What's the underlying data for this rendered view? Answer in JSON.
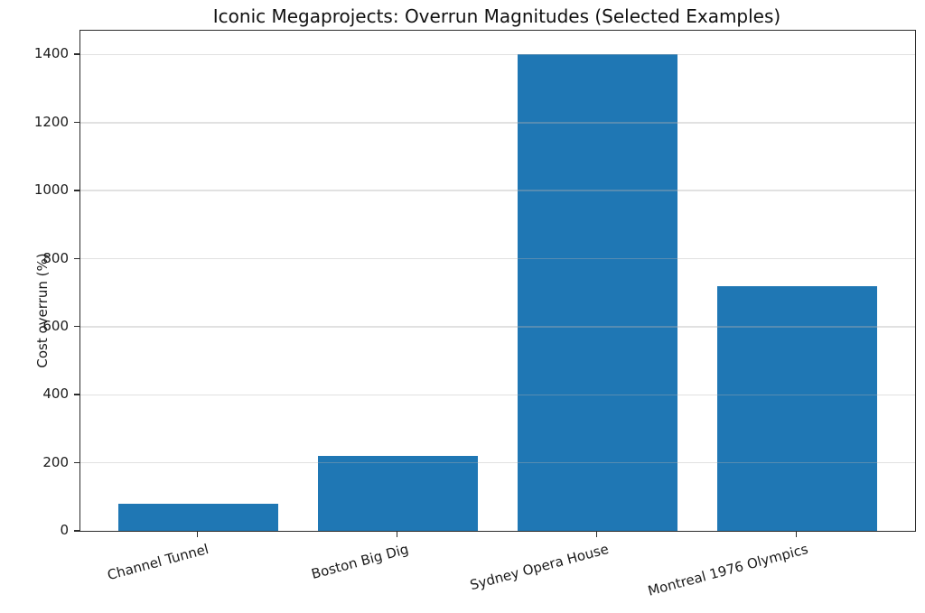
{
  "chart_data": {
    "type": "bar",
    "title": "Iconic Megaprojects: Overrun Magnitudes (Selected Examples)",
    "xlabel": "",
    "ylabel": "Cost overrun (%)",
    "categories": [
      "Channel Tunnel",
      "Boston Big Dig",
      "Sydney Opera House",
      "Montreal 1976 Olympics"
    ],
    "values": [
      80,
      220,
      1400,
      720
    ],
    "yticks": [
      0,
      200,
      400,
      600,
      800,
      1000,
      1200,
      1400
    ],
    "ylim": [
      0,
      1470
    ],
    "bar_color": "#1f77b4",
    "bar_width_fraction": 0.8,
    "x_tick_rotation_deg": 15,
    "grid": "horizontal",
    "legend": "none",
    "background_color": "#ffffff",
    "axis_color": "#2b2b2b",
    "grid_color": "#b0b0b0"
  }
}
